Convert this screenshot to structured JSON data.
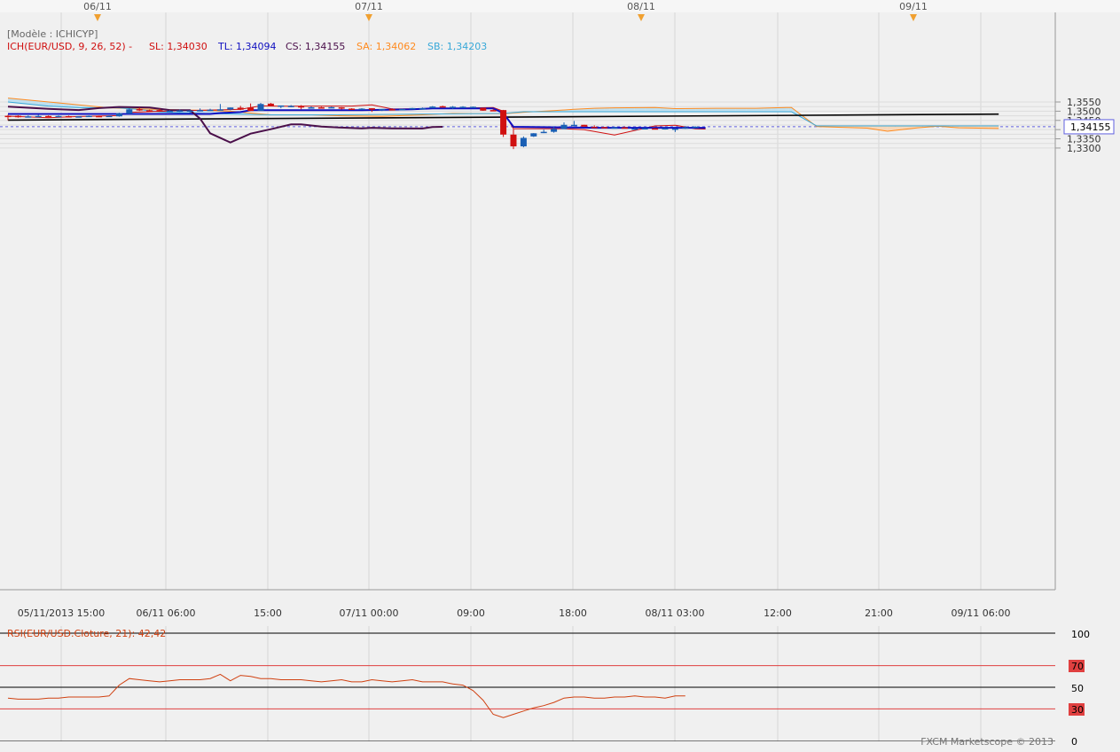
{
  "header": {
    "model_label": "[Modèle : ICHICYP]",
    "ich_label": "ICH(EUR/USD, 9, 26, 52) -",
    "sl": "SL: 1,34030",
    "tl": "TL: 1,34094",
    "cs": "CS: 1,34155",
    "sa": "SA: 1,34062",
    "sb": "SB: 1,34203"
  },
  "top_dates": [
    "06/11",
    "07/11",
    "08/11",
    "09/11"
  ],
  "rsi": {
    "label": "RSI(EUR/USD.Cloture, 21): 42,42",
    "levels": [
      "100",
      "70",
      "50",
      "30",
      "0"
    ]
  },
  "watermark": "FXCM Marketscope © 2013",
  "colors": {
    "up": "#1a5fb4",
    "down": "#d01010",
    "tenkan": "#1010c0",
    "kijun": "#d01010",
    "chikou": "#4a0f4a",
    "span_a": "#ff8a1e",
    "span_b": "#38a8d8",
    "cloud_bear": "#f7d7b9",
    "cloud_bull": "#bfe0f0",
    "trend": "#000000",
    "rsi_line": "#d04010"
  },
  "chart_data": [
    {
      "type": "candlestick",
      "symbol": "EUR/USD",
      "timeframe": "1h",
      "x_tick_labels": [
        "05/11/2013 15:00",
        "06/11 06:00",
        "15:00",
        "07/11 00:00",
        "09:00",
        "18:00",
        "08/11 03:00",
        "12:00",
        "21:00",
        "09/11 06:00"
      ],
      "y_tick_labels": [
        "1,3550",
        "1,3500",
        "1,3450",
        "1,3400",
        "1,3350",
        "1,3300"
      ],
      "ylim": [
        1.328,
        1.3595
      ],
      "last_price_label": "1,34155",
      "candles": [
        {
          "o": 1.3475,
          "h": 1.348,
          "l": 1.345,
          "c": 1.347
        },
        {
          "o": 1.3475,
          "h": 1.3478,
          "l": 1.3465,
          "c": 1.3467
        },
        {
          "o": 1.347,
          "h": 1.3477,
          "l": 1.3466,
          "c": 1.3472
        },
        {
          "o": 1.3472,
          "h": 1.348,
          "l": 1.3467,
          "c": 1.3474
        },
        {
          "o": 1.3474,
          "h": 1.3477,
          "l": 1.3471,
          "c": 1.3473
        },
        {
          "o": 1.3472,
          "h": 1.3477,
          "l": 1.3467,
          "c": 1.3474
        },
        {
          "o": 1.3473,
          "h": 1.3476,
          "l": 1.347,
          "c": 1.3472
        },
        {
          "o": 1.3469,
          "h": 1.3473,
          "l": 1.3468,
          "c": 1.3472
        },
        {
          "o": 1.3474,
          "h": 1.3477,
          "l": 1.347,
          "c": 1.3475
        },
        {
          "o": 1.3474,
          "h": 1.3476,
          "l": 1.3469,
          "c": 1.347
        },
        {
          "o": 1.347,
          "h": 1.3477,
          "l": 1.3469,
          "c": 1.3475
        },
        {
          "o": 1.3472,
          "h": 1.3492,
          "l": 1.347,
          "c": 1.3489
        },
        {
          "o": 1.3486,
          "h": 1.3515,
          "l": 1.3485,
          "c": 1.351
        },
        {
          "o": 1.3511,
          "h": 1.352,
          "l": 1.3501,
          "c": 1.3509
        },
        {
          "o": 1.3505,
          "h": 1.3508,
          "l": 1.3499,
          "c": 1.3501
        },
        {
          "o": 1.3506,
          "h": 1.3513,
          "l": 1.3501,
          "c": 1.3499
        },
        {
          "o": 1.35,
          "h": 1.3506,
          "l": 1.3495,
          "c": 1.3502
        },
        {
          "o": 1.3501,
          "h": 1.3509,
          "l": 1.3496,
          "c": 1.3504
        },
        {
          "o": 1.3502,
          "h": 1.3506,
          "l": 1.349,
          "c": 1.3504
        },
        {
          "o": 1.3505,
          "h": 1.3515,
          "l": 1.35,
          "c": 1.3506
        },
        {
          "o": 1.3506,
          "h": 1.3513,
          "l": 1.3504,
          "c": 1.3508
        },
        {
          "o": 1.3507,
          "h": 1.3539,
          "l": 1.3507,
          "c": 1.351
        },
        {
          "o": 1.3509,
          "h": 1.352,
          "l": 1.3505,
          "c": 1.352
        },
        {
          "o": 1.3519,
          "h": 1.3529,
          "l": 1.3506,
          "c": 1.3508
        },
        {
          "o": 1.352,
          "h": 1.3542,
          "l": 1.3501,
          "c": 1.3501
        },
        {
          "o": 1.3502,
          "h": 1.3545,
          "l": 1.3502,
          "c": 1.3539
        },
        {
          "o": 1.3541,
          "h": 1.3545,
          "l": 1.3527,
          "c": 1.3527
        },
        {
          "o": 1.3525,
          "h": 1.3531,
          "l": 1.3516,
          "c": 1.3531
        },
        {
          "o": 1.3525,
          "h": 1.3533,
          "l": 1.3521,
          "c": 1.3529
        },
        {
          "o": 1.3527,
          "h": 1.3533,
          "l": 1.351,
          "c": 1.3521
        },
        {
          "o": 1.352,
          "h": 1.3527,
          "l": 1.3516,
          "c": 1.3521
        },
        {
          "o": 1.3521,
          "h": 1.3524,
          "l": 1.3518,
          "c": 1.352
        },
        {
          "o": 1.352,
          "h": 1.3525,
          "l": 1.3516,
          "c": 1.3522
        },
        {
          "o": 1.3521,
          "h": 1.3522,
          "l": 1.3509,
          "c": 1.3519
        },
        {
          "o": 1.3514,
          "h": 1.3516,
          "l": 1.351,
          "c": 1.3512
        },
        {
          "o": 1.3512,
          "h": 1.3516,
          "l": 1.351,
          "c": 1.3514
        },
        {
          "o": 1.3516,
          "h": 1.3516,
          "l": 1.3496,
          "c": 1.3508
        },
        {
          "o": 1.3509,
          "h": 1.3512,
          "l": 1.3501,
          "c": 1.3512
        },
        {
          "o": 1.3511,
          "h": 1.3516,
          "l": 1.3508,
          "c": 1.3508
        },
        {
          "o": 1.3507,
          "h": 1.3513,
          "l": 1.3506,
          "c": 1.3512
        },
        {
          "o": 1.3513,
          "h": 1.3518,
          "l": 1.3512,
          "c": 1.3517
        },
        {
          "o": 1.3515,
          "h": 1.352,
          "l": 1.3514,
          "c": 1.3516
        },
        {
          "o": 1.3516,
          "h": 1.3528,
          "l": 1.3516,
          "c": 1.3525
        },
        {
          "o": 1.3527,
          "h": 1.353,
          "l": 1.3523,
          "c": 1.3525
        },
        {
          "o": 1.3524,
          "h": 1.3528,
          "l": 1.3511,
          "c": 1.3524
        },
        {
          "o": 1.3523,
          "h": 1.3527,
          "l": 1.3519,
          "c": 1.3524
        },
        {
          "o": 1.3523,
          "h": 1.3525,
          "l": 1.3522,
          "c": 1.3524
        },
        {
          "o": 1.3518,
          "h": 1.3518,
          "l": 1.3502,
          "c": 1.3503
        },
        {
          "o": 1.3506,
          "h": 1.3513,
          "l": 1.35,
          "c": 1.3502
        },
        {
          "o": 1.3506,
          "h": 1.3507,
          "l": 1.336,
          "c": 1.3373
        },
        {
          "o": 1.3373,
          "h": 1.3402,
          "l": 1.3294,
          "c": 1.3309
        },
        {
          "o": 1.3309,
          "h": 1.3363,
          "l": 1.3304,
          "c": 1.3355
        },
        {
          "o": 1.3363,
          "h": 1.3381,
          "l": 1.336,
          "c": 1.338
        },
        {
          "o": 1.3383,
          "h": 1.34,
          "l": 1.3381,
          "c": 1.3388
        },
        {
          "o": 1.3388,
          "h": 1.3416,
          "l": 1.3383,
          "c": 1.3404
        },
        {
          "o": 1.3403,
          "h": 1.3439,
          "l": 1.3403,
          "c": 1.3426
        },
        {
          "o": 1.3426,
          "h": 1.3447,
          "l": 1.3418,
          "c": 1.3426
        },
        {
          "o": 1.3426,
          "h": 1.3426,
          "l": 1.3416,
          "c": 1.3416
        },
        {
          "o": 1.3415,
          "h": 1.3423,
          "l": 1.3408,
          "c": 1.3411
        },
        {
          "o": 1.3414,
          "h": 1.3414,
          "l": 1.3406,
          "c": 1.3408
        },
        {
          "o": 1.3408,
          "h": 1.3415,
          "l": 1.3407,
          "c": 1.3412
        },
        {
          "o": 1.3412,
          "h": 1.3417,
          "l": 1.3406,
          "c": 1.3406
        },
        {
          "o": 1.3406,
          "h": 1.3409,
          "l": 1.34,
          "c": 1.3406
        },
        {
          "o": 1.3405,
          "h": 1.341,
          "l": 1.3405,
          "c": 1.3408
        },
        {
          "o": 1.3407,
          "h": 1.341,
          "l": 1.3405,
          "c": 1.3405
        },
        {
          "o": 1.3408,
          "h": 1.3409,
          "l": 1.34,
          "c": 1.3408
        },
        {
          "o": 1.3406,
          "h": 1.3406,
          "l": 1.3387,
          "c": 1.3406
        },
        {
          "o": 1.3405,
          "h": 1.342,
          "l": 1.3404,
          "c": 1.3412
        },
        {
          "o": 1.3413,
          "h": 1.3418,
          "l": 1.341,
          "c": 1.3416
        }
      ],
      "series": [
        {
          "name": "TL",
          "color": "#1010c0",
          "points": [
            [
              0,
              1.3485
            ],
            [
              20,
              1.3485
            ],
            [
              21,
              1.349
            ],
            [
              23,
              1.3495
            ],
            [
              24,
              1.3505
            ],
            [
              35,
              1.3505
            ],
            [
              40,
              1.351
            ],
            [
              42,
              1.3515
            ],
            [
              48,
              1.3515
            ],
            [
              49,
              1.349
            ],
            [
              50,
              1.3415
            ],
            [
              58,
              1.341
            ],
            [
              69,
              1.341
            ]
          ]
        },
        {
          "name": "SL",
          "color": "#d01010",
          "points": [
            [
              0,
              1.3473
            ],
            [
              4,
              1.3465
            ],
            [
              7,
              1.3471
            ],
            [
              11,
              1.3476
            ],
            [
              12,
              1.3493
            ],
            [
              17,
              1.3503
            ],
            [
              21,
              1.3507
            ],
            [
              23,
              1.351
            ],
            [
              25,
              1.3529
            ],
            [
              27,
              1.3527
            ],
            [
              34,
              1.3528
            ],
            [
              36,
              1.3534
            ],
            [
              38,
              1.3512
            ],
            [
              42,
              1.3514
            ],
            [
              48,
              1.352
            ],
            [
              49,
              1.35
            ],
            [
              50,
              1.3405
            ],
            [
              55,
              1.3405
            ],
            [
              57,
              1.34
            ],
            [
              60,
              1.3371
            ],
            [
              64,
              1.342
            ],
            [
              66,
              1.3424
            ],
            [
              68,
              1.3404
            ],
            [
              69,
              1.3403
            ]
          ]
        },
        {
          "name": "CS",
          "color": "#4a0f4a",
          "points": [
            [
              0,
              1.3525
            ],
            [
              4,
              1.3513
            ],
            [
              7,
              1.3506
            ],
            [
              9,
              1.3517
            ],
            [
              11,
              1.3523
            ],
            [
              14,
              1.352
            ],
            [
              16,
              1.3506
            ],
            [
              18,
              1.3505
            ],
            [
              19,
              1.346
            ],
            [
              20,
              1.338
            ],
            [
              22,
              1.333
            ],
            [
              24,
              1.3378
            ],
            [
              26,
              1.3402
            ],
            [
              28,
              1.3428
            ],
            [
              29,
              1.3428
            ],
            [
              31,
              1.3416
            ],
            [
              33,
              1.3411
            ],
            [
              35,
              1.3407
            ],
            [
              36,
              1.341
            ],
            [
              38,
              1.3407
            ],
            [
              41,
              1.3406
            ],
            [
              42,
              1.3414
            ],
            [
              43,
              1.3415
            ]
          ]
        },
        {
          "name": "SA",
          "color": "#ff8a1e",
          "points": [
            [
              0,
              1.3571
            ],
            [
              6,
              1.354
            ],
            [
              10,
              1.3518
            ],
            [
              14,
              1.3511
            ],
            [
              18,
              1.3506
            ],
            [
              22,
              1.35
            ],
            [
              24,
              1.349
            ],
            [
              26,
              1.348
            ],
            [
              30,
              1.348
            ],
            [
              33,
              1.3475
            ],
            [
              37,
              1.3472
            ],
            [
              41,
              1.348
            ],
            [
              44,
              1.3488
            ],
            [
              49,
              1.3486
            ],
            [
              51,
              1.3494
            ],
            [
              54,
              1.3503
            ],
            [
              56,
              1.351
            ],
            [
              58,
              1.3516
            ],
            [
              60,
              1.3518
            ],
            [
              64,
              1.352
            ],
            [
              66,
              1.3514
            ],
            [
              70,
              1.3516
            ],
            [
              74,
              1.3516
            ],
            [
              77,
              1.352
            ],
            [
              77.5,
              1.352
            ],
            [
              80,
              1.3416
            ],
            [
              85,
              1.3408
            ],
            [
              87,
              1.3391
            ],
            [
              90,
              1.341
            ],
            [
              92,
              1.3418
            ],
            [
              94,
              1.341
            ],
            [
              98,
              1.3406
            ]
          ]
        },
        {
          "name": "SB",
          "color": "#38a8d8",
          "points": [
            [
              0,
              1.355
            ],
            [
              4,
              1.3528
            ],
            [
              7,
              1.3519
            ],
            [
              11,
              1.3518
            ],
            [
              13,
              1.3509
            ],
            [
              15,
              1.3496
            ],
            [
              18,
              1.349
            ],
            [
              20,
              1.3487
            ],
            [
              26,
              1.348
            ],
            [
              32,
              1.348
            ],
            [
              49,
              1.3488
            ],
            [
              51,
              1.3497
            ],
            [
              77.5,
              1.3497
            ],
            [
              80,
              1.342
            ],
            [
              98,
              1.342
            ]
          ]
        },
        {
          "name": "trend",
          "color": "#000000",
          "points": [
            [
              0,
              1.3452
            ],
            [
              98,
              1.3484
            ]
          ]
        }
      ]
    },
    {
      "type": "line",
      "title": "RSI(EUR/USD.Cloture, 21): 42,42",
      "ylim": [
        0,
        100
      ],
      "levels": [
        100,
        70,
        50,
        30,
        0
      ],
      "series": [
        {
          "name": "RSI",
          "values": [
            40,
            39,
            39,
            39,
            40,
            40,
            41,
            41,
            41,
            41,
            42,
            52,
            58,
            57,
            56,
            55,
            56,
            57,
            57,
            57,
            58,
            62,
            56,
            61,
            60,
            58,
            58,
            57,
            57,
            57,
            56,
            55,
            56,
            57,
            55,
            55,
            57,
            56,
            55,
            56,
            57,
            55,
            55,
            55,
            53,
            52,
            47,
            38,
            25,
            22,
            25,
            28,
            31,
            33,
            36,
            40,
            41,
            41,
            40,
            40,
            41,
            41,
            42,
            41,
            41,
            40,
            42,
            42
          ]
        }
      ]
    }
  ]
}
